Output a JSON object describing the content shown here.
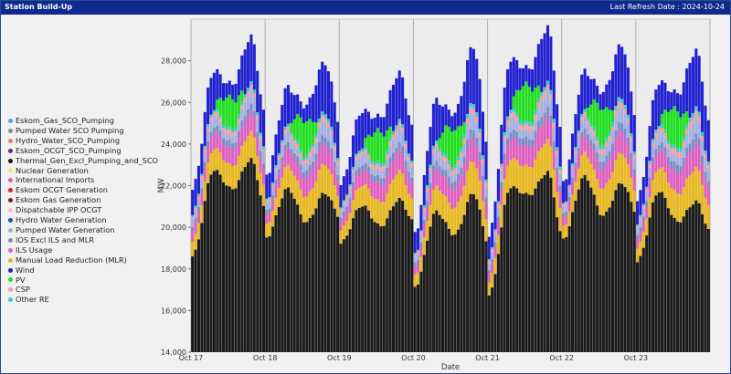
{
  "header": {
    "title": "Station Build-Up",
    "refresh": "Last Refresh Date : 2024-10-24"
  },
  "legend": [
    {
      "label": "Eskom_Gas_SCO_Pumping",
      "color": "#3fa9f5"
    },
    {
      "label": "Pumped Water SCO Pumping",
      "color": "#8c8c8c"
    },
    {
      "label": "Hydro_Water_SCO_Pumping",
      "color": "#f0786e"
    },
    {
      "label": "Eskom_OCGT_SCO_Pumping",
      "color": "#6a2a8c"
    },
    {
      "label": "Thermal_Gen_Excl_Pumping_and_SCO",
      "color": "#1a1a1a"
    },
    {
      "label": "Nuclear Generation",
      "color": "#f5e66e"
    },
    {
      "label": "International Imports",
      "color": "#e85aa8"
    },
    {
      "label": "Eskom OCGT Generation",
      "color": "#e02020"
    },
    {
      "label": "Eskom Gas Generation",
      "color": "#8a1a1a"
    },
    {
      "label": "Dispatchable IPP OCGT",
      "color": "#f5c0d0"
    },
    {
      "label": "Hydro Water Generation",
      "color": "#1f4fa8"
    },
    {
      "label": "Pumped Water Generation",
      "color": "#a5b0e0"
    },
    {
      "label": "IOS Excl ILS and MLR",
      "color": "#7a8fc8"
    },
    {
      "label": "ILS Usage",
      "color": "#e060c0"
    },
    {
      "label": "Manual Load Reduction (MLR)",
      "color": "#e8b820"
    },
    {
      "label": "Wind",
      "color": "#2020d0"
    },
    {
      "label": "PV",
      "color": "#20e020"
    },
    {
      "label": "CSP",
      "color": "#f5a0a0"
    },
    {
      "label": "Other RE",
      "color": "#40c8c8"
    }
  ],
  "chart_data": {
    "type": "bar",
    "stacked": true,
    "xlabel": "Date",
    "ylabel": "MW",
    "ylim": [
      14000,
      30000
    ],
    "yticks": [
      14000,
      16000,
      18000,
      20000,
      22000,
      24000,
      26000,
      28000
    ],
    "ytick_labels": [
      "14,000",
      "16,000",
      "18,000",
      "20,000",
      "22,000",
      "24,000",
      "26,000",
      "28,000"
    ],
    "x_labels": [
      "Oct 17",
      "Oct 18",
      "Oct 19",
      "Oct 20",
      "Oct 21",
      "Oct 22",
      "Oct 23"
    ],
    "hours_per_day": 24,
    "days": 7,
    "peaks_by_day": [
      {
        "thermal": [
          18600,
          22800,
          21800,
          23300
        ],
        "total": [
          21800,
          27600,
          26800,
          29200
        ]
      },
      {
        "thermal": [
          19500,
          21900,
          20200,
          21700
        ],
        "total": [
          22500,
          26800,
          25800,
          28000
        ]
      },
      {
        "thermal": [
          19200,
          21100,
          20000,
          21400
        ],
        "total": [
          22000,
          25700,
          25200,
          27500
        ]
      },
      {
        "thermal": [
          17100,
          20800,
          19600,
          21700
        ],
        "total": [
          19700,
          26200,
          25400,
          28800
        ]
      },
      {
        "thermal": [
          16700,
          22000,
          21500,
          22700
        ],
        "total": [
          19500,
          28200,
          27500,
          29700
        ]
      },
      {
        "thermal": [
          19400,
          22500,
          20500,
          22200
        ],
        "total": [
          22100,
          27600,
          26400,
          28900
        ]
      },
      {
        "thermal": [
          18300,
          21800,
          20200,
          21300
        ],
        "total": [
          21200,
          27100,
          26300,
          28600
        ]
      }
    ]
  }
}
